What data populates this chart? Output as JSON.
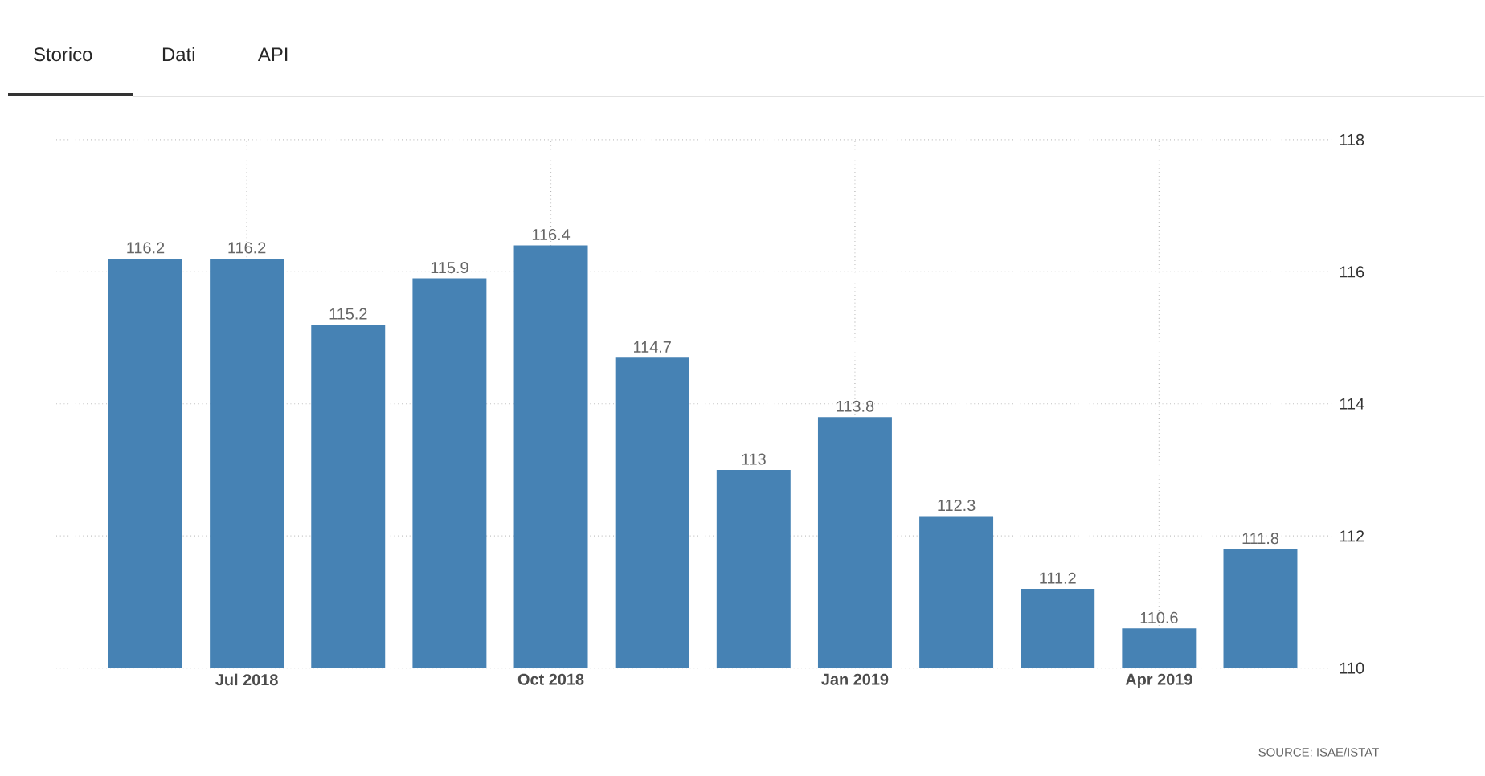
{
  "chart_data": {
    "type": "bar",
    "categories": [
      null,
      "Jul 2018",
      null,
      null,
      "Oct 2018",
      null,
      null,
      "Jan 2019",
      null,
      null,
      "Apr 2019",
      null
    ],
    "values": [
      116.2,
      116.2,
      115.2,
      115.9,
      116.4,
      114.7,
      113,
      113.8,
      112.3,
      111.2,
      110.6,
      111.8
    ],
    "color": "#4682b4",
    "ylim": [
      110,
      118
    ],
    "yticks": [
      110,
      112,
      114,
      116,
      118
    ],
    "grid": true,
    "data_labels": true,
    "annotations": [
      "Storico",
      "Dati",
      "API",
      "SOURCE: ISAE/ISTAT"
    ]
  }
}
